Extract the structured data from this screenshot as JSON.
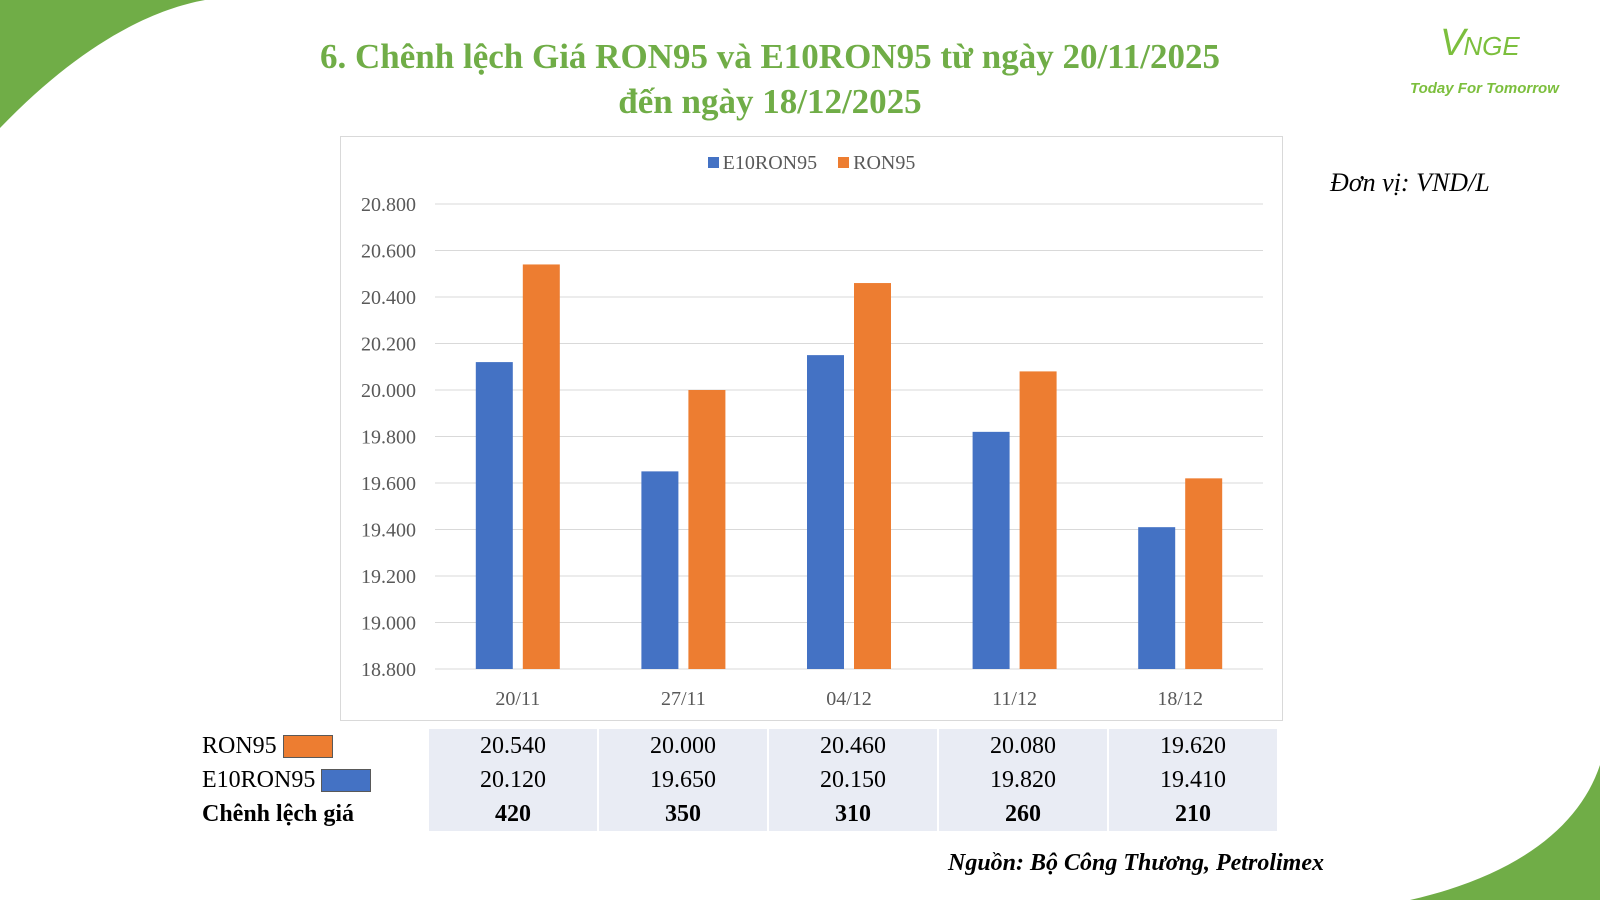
{
  "title": {
    "line1": "6. Chênh lệch Giá RON95 và E10RON95 từ ngày 20/11/2025",
    "line2": "đến ngày 18/12/2025"
  },
  "logo": {
    "mark": "V",
    "mark_rest": "NGE",
    "tagline": "Today For Tomorrow"
  },
  "unit": "Đơn vị: VND/L",
  "source": "Nguồn: Bộ Công Thương, Petrolimex",
  "colors": {
    "title": "#70ad47",
    "e10ron95": "#4472c4",
    "ron95": "#ed7d31",
    "accent_green": "#70ad47"
  },
  "chart_data": {
    "type": "bar",
    "categories": [
      "20/11",
      "27/11",
      "04/12",
      "11/12",
      "18/12"
    ],
    "series": [
      {
        "name": "E10RON95",
        "color": "#4472c4",
        "values": [
          20120,
          19650,
          20150,
          19820,
          19410
        ]
      },
      {
        "name": "RON95",
        "color": "#ed7d31",
        "values": [
          20540,
          20000,
          20460,
          20080,
          19620
        ]
      }
    ],
    "ylim": [
      18800,
      20800
    ],
    "yticks": [
      18800,
      19000,
      19200,
      19400,
      19600,
      19800,
      20000,
      20200,
      20400,
      20600,
      20800
    ],
    "ytick_labels": [
      "18.800",
      "19.000",
      "19.200",
      "19.400",
      "19.600",
      "19.800",
      "20.000",
      "20.200",
      "20.400",
      "20.600",
      "20.800"
    ],
    "grid": true,
    "legend_position": "top"
  },
  "table": {
    "rows": [
      {
        "label": "RON95",
        "swatch_color": "#ed7d31",
        "values": [
          "20.540",
          "20.000",
          "20.460",
          "20.080",
          "19.620"
        ]
      },
      {
        "label": "E10RON95",
        "swatch_color": "#4472c4",
        "values": [
          "20.120",
          "19.650",
          "20.150",
          "19.820",
          "19.410"
        ]
      },
      {
        "label": "Chênh lệch giá",
        "values": [
          "420",
          "350",
          "310",
          "260",
          "210"
        ]
      }
    ]
  }
}
